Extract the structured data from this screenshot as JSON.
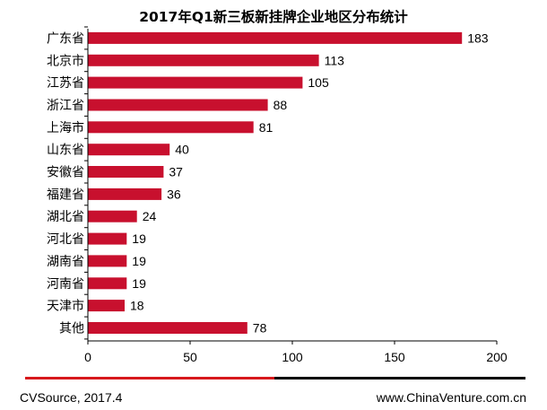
{
  "chart_data": {
    "type": "bar",
    "orientation": "horizontal",
    "title": "2017年Q1新三板新挂牌企业地区分布统计",
    "categories": [
      "广东省",
      "北京市",
      "江苏省",
      "浙江省",
      "上海市",
      "山东省",
      "安徽省",
      "福建省",
      "湖北省",
      "河北省",
      "湖南省",
      "河南省",
      "天津市",
      "其他"
    ],
    "values": [
      183,
      113,
      105,
      88,
      81,
      40,
      37,
      36,
      24,
      19,
      19,
      19,
      18,
      78
    ],
    "xlim": [
      0,
      200
    ],
    "xticks": [
      0,
      50,
      100,
      150,
      200
    ],
    "xlabel": "",
    "ylabel": "",
    "grid": false,
    "bar_color": "#c8102e",
    "data_labels": true
  },
  "footer": {
    "source": "CVSource, 2017.4",
    "website": "www.ChinaVenture.com.cn",
    "rule_colors": [
      "#d7191c",
      "#000000"
    ]
  }
}
